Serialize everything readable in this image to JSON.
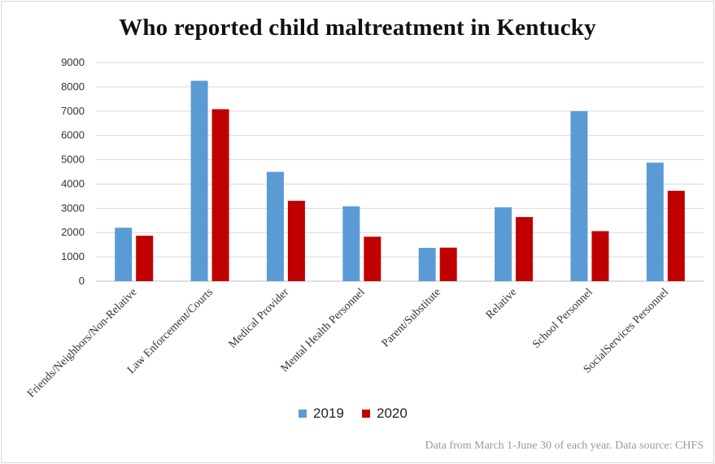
{
  "chart_data": {
    "type": "bar",
    "title": "Who reported child maltreatment in Kentucky",
    "categories": [
      "Friends/Neighbors/Non-Relative",
      "Law Enforcement/Courts",
      "Medical Provider",
      "Mental Health Personnel",
      "Parent/Substitute",
      "Relative",
      "School Personnel",
      "SocialServices Personnel"
    ],
    "series": [
      {
        "name": "2019",
        "color": "#5b9bd5",
        "values": [
          2200,
          8250,
          4500,
          3080,
          1370,
          3040,
          7000,
          4880
        ]
      },
      {
        "name": "2020",
        "color": "#c00000",
        "values": [
          1870,
          7080,
          3310,
          1830,
          1380,
          2640,
          2060,
          3720
        ]
      }
    ],
    "ylim": [
      0,
      9000
    ],
    "yticks": [
      0,
      1000,
      2000,
      3000,
      4000,
      5000,
      6000,
      7000,
      8000,
      9000
    ],
    "grid": true,
    "legend_position": "bottom",
    "xlabel": "",
    "ylabel": "",
    "source_note": "Data from March 1-June 30 of each year. Data source: CHFS"
  }
}
